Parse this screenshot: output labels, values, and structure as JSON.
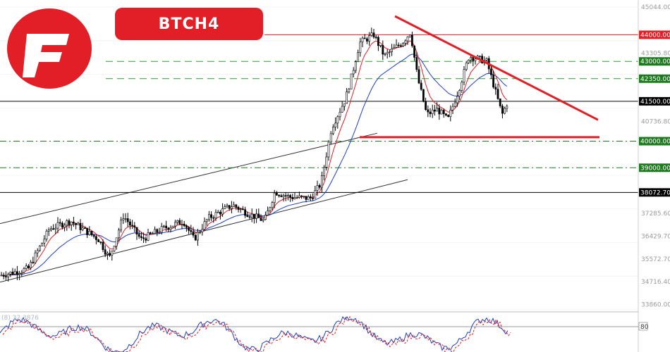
{
  "badge": {
    "symbol": "BTC",
    "timeframe": "H4"
  },
  "logo": {
    "name": "brand-logo-icon",
    "color": "#e21e26"
  },
  "oscillator": {
    "label": "(8) 32.3876",
    "level_label": "80"
  },
  "chart_data": {
    "type": "candlestick",
    "symbol": "BTC",
    "timeframe": "H4",
    "ylim": [
      33660,
      45044
    ],
    "price_ticks": [
      "45044.00",
      "43305.80",
      "40736.80",
      "37285.60",
      "36429.70",
      "35572.70",
      "34716.40",
      "33860.00"
    ],
    "levels": [
      {
        "label": "44000.00",
        "value": 44000,
        "style": "solid",
        "color": "#e21e26"
      },
      {
        "label": "43000.00",
        "value": 43000,
        "style": "dashed",
        "color": "#2e9e2e"
      },
      {
        "label": "42350.00",
        "value": 42350,
        "style": "dashed",
        "color": "#2e9e2e"
      },
      {
        "label": "41500.00",
        "value": 41500,
        "style": "solid",
        "color": "#000000"
      },
      {
        "label": "40000.00",
        "value": 40000,
        "style": "dashdot",
        "color": "#1e7a1e"
      },
      {
        "label": "39000.00",
        "value": 39000,
        "style": "dashdot",
        "color": "#1e7a1e"
      },
      {
        "label": "38072.70",
        "value": 38072.7,
        "style": "solid",
        "color": "#000000"
      }
    ],
    "support_line": {
      "value": 40150
    },
    "colors": {
      "candle": "#000000",
      "ema_fast": "#e21e26",
      "ema_slow": "#1f3fbf",
      "trend": "#e21e26",
      "osc_main": "#1f3fbf",
      "osc_signal": "#e21e26"
    }
  }
}
